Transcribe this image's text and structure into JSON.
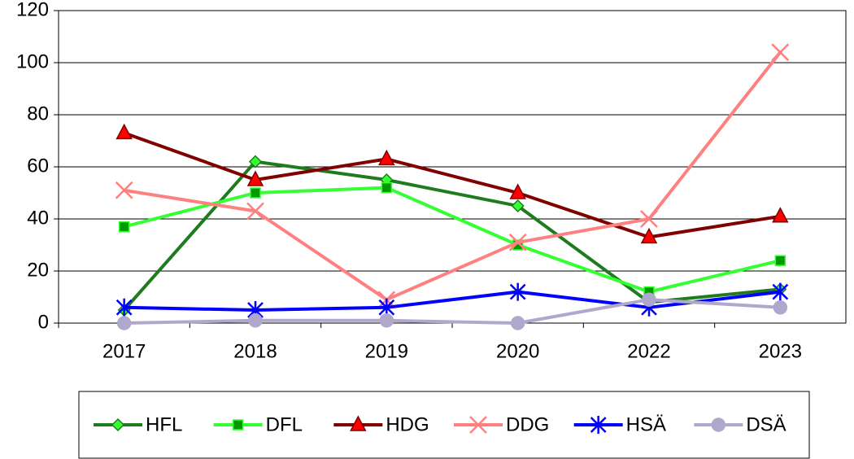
{
  "chart_data": {
    "type": "line",
    "categories": [
      "2017",
      "2018",
      "2019",
      "2020",
      "2022",
      "2023"
    ],
    "series": [
      {
        "name": "HFL",
        "color": "#1e7b1e",
        "marker": "diamond",
        "marker_fill": "#33ff33",
        "values": [
          5,
          62,
          55,
          45,
          8,
          13
        ]
      },
      {
        "name": "DFL",
        "color": "#33ff33",
        "marker": "square",
        "marker_fill": "#009900",
        "values": [
          37,
          50,
          52,
          30,
          12,
          24
        ]
      },
      {
        "name": "HDG",
        "color": "#800000",
        "marker": "triangle",
        "marker_fill": "#ff0000",
        "values": [
          73,
          55,
          63,
          50,
          33,
          41
        ]
      },
      {
        "name": "DDG",
        "color": "#ff8080",
        "marker": "x",
        "marker_fill": "#ff8080",
        "values": [
          51,
          43,
          9,
          31,
          40,
          104
        ]
      },
      {
        "name": "HSÄ",
        "color": "#0000ff",
        "marker": "asterisk",
        "marker_fill": "#0000ff",
        "values": [
          6,
          5,
          6,
          12,
          6,
          12
        ]
      },
      {
        "name": "DSÄ",
        "color": "#b0a8cc",
        "marker": "circle",
        "marker_fill": "#b0a8cc",
        "values": [
          0,
          1,
          1,
          0,
          9,
          6
        ]
      }
    ],
    "ylim": [
      0,
      120
    ],
    "yticks": [
      0,
      20,
      40,
      60,
      80,
      100,
      120
    ],
    "grid": true,
    "legend": "bottom"
  }
}
